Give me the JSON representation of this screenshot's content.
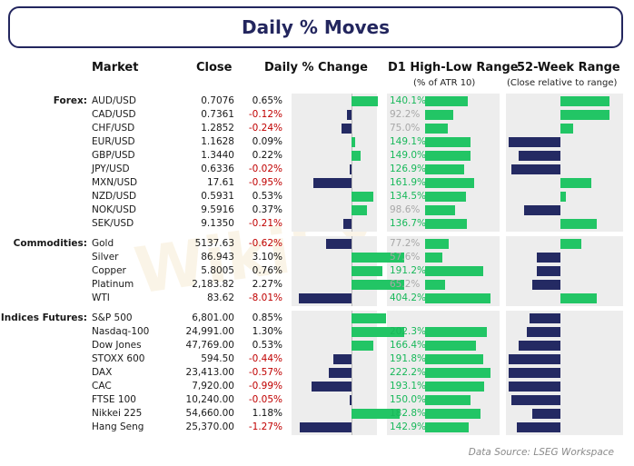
{
  "title": "Daily % Moves",
  "headers": {
    "market": "Market",
    "close": "Close",
    "daily": "Daily % Change",
    "atr": "D1 High-Low Range",
    "atr_sub": "(% of ATR 10)",
    "range52": "52-Week Range",
    "range52_sub": "(Close relative to range)"
  },
  "source": "Data Source: LSEG Workspace",
  "watermark": "WikiFX",
  "colors": {
    "positive_bar": "#22c565",
    "negative_bar": "#242a63",
    "negative_text": "#c00000",
    "title": "#23265e"
  },
  "chart_data": {
    "type": "table",
    "groups": [
      {
        "label": "Forex:",
        "rows": [
          {
            "name": "AUD/USD",
            "close": "0.7076",
            "change_label": "0.65%",
            "change": 0.65,
            "atr_label": "140.1%",
            "atr": 140.1,
            "range52": 0.95
          },
          {
            "name": "CAD/USD",
            "close": "0.7361",
            "change_label": "-0.12%",
            "change": -0.12,
            "atr_label": "92.2%",
            "atr": 92.2,
            "range52": 0.95
          },
          {
            "name": "CHF/USD",
            "close": "1.2852",
            "change_label": "-0.24%",
            "change": -0.24,
            "atr_label": "75.0%",
            "atr": 75.0,
            "range52": 0.25
          },
          {
            "name": "EUR/USD",
            "close": "1.1628",
            "change_label": "0.09%",
            "change": 0.09,
            "atr_label": "149.1%",
            "atr": 149.1,
            "range52": -1.0
          },
          {
            "name": "GBP/USD",
            "close": "1.3440",
            "change_label": "0.22%",
            "change": 0.22,
            "atr_label": "149.0%",
            "atr": 149.0,
            "range52": -0.8
          },
          {
            "name": "JPY/USD",
            "close": "0.6336",
            "change_label": "-0.02%",
            "change": -0.02,
            "atr_label": "126.9%",
            "atr": 126.9,
            "range52": -0.95
          },
          {
            "name": "MXN/USD",
            "close": "17.61",
            "change_label": "-0.95%",
            "change": -0.95,
            "atr_label": "161.9%",
            "atr": 161.9,
            "range52": 0.6
          },
          {
            "name": "NZD/USD",
            "close": "0.5931",
            "change_label": "0.53%",
            "change": 0.53,
            "atr_label": "134.5%",
            "atr": 134.5,
            "range52": 0.1
          },
          {
            "name": "NOK/USD",
            "close": "9.5916",
            "change_label": "0.37%",
            "change": 0.37,
            "atr_label": "98.6%",
            "atr": 98.6,
            "range52": -0.7
          },
          {
            "name": "SEK/USD",
            "close": "9.1350",
            "change_label": "-0.21%",
            "change": -0.21,
            "atr_label": "136.7%",
            "atr": 136.7,
            "range52": 0.7
          }
        ]
      },
      {
        "label": "Commodities:",
        "rows": [
          {
            "name": "Gold",
            "close": "5137.63",
            "change_label": "-0.62%",
            "change": -0.62,
            "atr_label": "77.2%",
            "atr": 77.2,
            "range52": 0.4
          },
          {
            "name": "Silver",
            "close": "86.943",
            "change_label": "3.10%",
            "change": 3.1,
            "atr_label": "57.6%",
            "atr": 57.6,
            "range52": -0.45
          },
          {
            "name": "Copper",
            "close": "5.8005",
            "change_label": "0.76%",
            "change": 0.76,
            "atr_label": "191.2%",
            "atr": 191.2,
            "range52": -0.45
          },
          {
            "name": "Platinum",
            "close": "2,183.82",
            "change_label": "2.27%",
            "change": 2.27,
            "atr_label": "65.2%",
            "atr": 65.2,
            "range52": -0.55
          },
          {
            "name": "WTI",
            "close": "83.62",
            "change_label": "-8.01%",
            "change": -8.01,
            "atr_label": "404.2%",
            "atr": 404.2,
            "range52": 0.7
          }
        ]
      },
      {
        "label": "Indices Futures:",
        "rows": [
          {
            "name": "S&P 500",
            "close": "6,801.00",
            "change_label": "0.85%",
            "change": 0.85,
            "atr_label": "",
            "atr": 0,
            "range52": -0.6
          },
          {
            "name": "Nasdaq-100",
            "close": "24,991.00",
            "change_label": "1.30%",
            "change": 1.3,
            "atr_label": "202.3%",
            "atr": 202.3,
            "range52": -0.65
          },
          {
            "name": "Dow Jones",
            "close": "47,769.00",
            "change_label": "0.53%",
            "change": 0.53,
            "atr_label": "166.4%",
            "atr": 166.4,
            "range52": -0.8
          },
          {
            "name": "STOXX 600",
            "close": "594.50",
            "change_label": "-0.44%",
            "change": -0.44,
            "atr_label": "191.8%",
            "atr": 191.8,
            "range52": -1.0
          },
          {
            "name": "DAX",
            "close": "23,413.00",
            "change_label": "-0.57%",
            "change": -0.57,
            "atr_label": "222.2%",
            "atr": 222.2,
            "range52": -1.0
          },
          {
            "name": "CAC",
            "close": "7,920.00",
            "change_label": "-0.99%",
            "change": -0.99,
            "atr_label": "193.1%",
            "atr": 193.1,
            "range52": -1.0
          },
          {
            "name": "FTSE 100",
            "close": "10,240.00",
            "change_label": "-0.05%",
            "change": -0.05,
            "atr_label": "150.0%",
            "atr": 150.0,
            "range52": -0.95
          },
          {
            "name": "Nikkei 225",
            "close": "54,660.00",
            "change_label": "1.18%",
            "change": 1.18,
            "atr_label": "182.8%",
            "atr": 182.8,
            "range52": -0.55
          },
          {
            "name": "Hang Seng",
            "close": "25,370.00",
            "change_label": "-1.27%",
            "change": -1.27,
            "atr_label": "142.9%",
            "atr": 142.9,
            "range52": -0.85
          }
        ]
      }
    ]
  }
}
